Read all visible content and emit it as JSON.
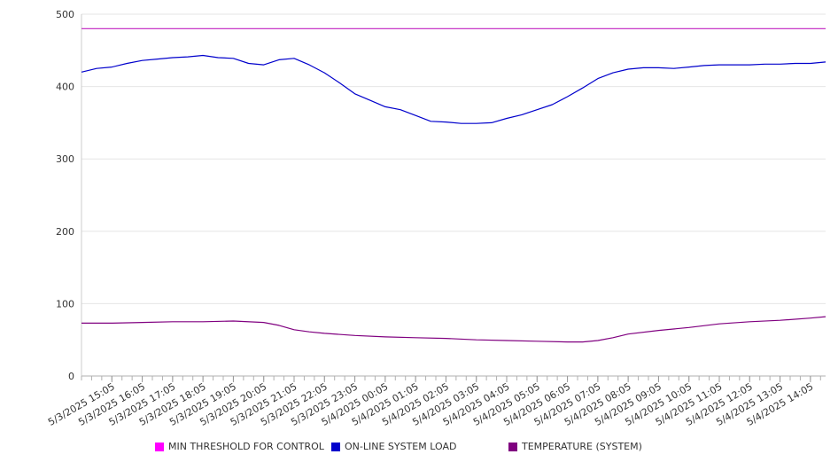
{
  "chart_data": {
    "type": "line",
    "ylim": [
      0,
      500
    ],
    "yticks": [
      "0",
      "100",
      "200",
      "300",
      "400",
      "500"
    ],
    "xticks": [
      "5/3/2025 15:05",
      "5/3/2025 16:05",
      "5/3/2025 17:05",
      "5/3/2025 18:05",
      "5/3/2025 19:05",
      "5/3/2025 20:05",
      "5/3/2025 21:05",
      "5/3/2025 22:05",
      "5/3/2025 23:05",
      "5/4/2025 00:05",
      "5/4/2025 01:05",
      "5/4/2025 02:05",
      "5/4/2025 03:05",
      "5/4/2025 04:05",
      "5/4/2025 05:05",
      "5/4/2025 06:05",
      "5/4/2025 07:05",
      "5/4/2025 08:05",
      "5/4/2025 09:05",
      "5/4/2025 10:05",
      "5/4/2025 11:05",
      "5/4/2025 12:05",
      "5/4/2025 13:05",
      "5/4/2025 14:05"
    ],
    "grid": true,
    "legend_position": "bottom",
    "series": [
      {
        "name": "MIN THRESHOLD FOR CONTROL",
        "color": "#c020c0",
        "x": [
          "5/3/2025 14:05",
          "5/4/2025 14:35"
        ],
        "values": [
          480,
          480
        ]
      },
      {
        "name": "ON-LINE SYSTEM LOAD",
        "color": "#0000cc",
        "x": [
          "5/3/2025 14:05",
          "5/3/2025 14:35",
          "5/3/2025 15:05",
          "5/3/2025 15:35",
          "5/3/2025 16:05",
          "5/3/2025 16:35",
          "5/3/2025 17:05",
          "5/3/2025 17:35",
          "5/3/2025 18:05",
          "5/3/2025 18:35",
          "5/3/2025 19:05",
          "5/3/2025 19:35",
          "5/3/2025 20:05",
          "5/3/2025 20:35",
          "5/3/2025 21:05",
          "5/3/2025 21:35",
          "5/3/2025 22:05",
          "5/3/2025 22:35",
          "5/3/2025 23:05",
          "5/3/2025 23:35",
          "5/4/2025 00:05",
          "5/4/2025 00:35",
          "5/4/2025 01:05",
          "5/4/2025 01:35",
          "5/4/2025 02:05",
          "5/4/2025 02:35",
          "5/4/2025 03:05",
          "5/4/2025 03:35",
          "5/4/2025 04:05",
          "5/4/2025 04:35",
          "5/4/2025 05:05",
          "5/4/2025 05:35",
          "5/4/2025 06:05",
          "5/4/2025 06:35",
          "5/4/2025 07:05",
          "5/4/2025 07:35",
          "5/4/2025 08:05",
          "5/4/2025 08:35",
          "5/4/2025 09:05",
          "5/4/2025 09:35",
          "5/4/2025 10:05",
          "5/4/2025 10:35",
          "5/4/2025 11:05",
          "5/4/2025 11:35",
          "5/4/2025 12:05",
          "5/4/2025 12:35",
          "5/4/2025 13:05",
          "5/4/2025 13:35",
          "5/4/2025 14:05",
          "5/4/2025 14:35"
        ],
        "values": [
          420,
          425,
          427,
          432,
          436,
          438,
          440,
          441,
          443,
          440,
          439,
          432,
          430,
          437,
          439,
          430,
          419,
          405,
          390,
          381,
          372,
          368,
          360,
          352,
          351,
          349,
          349,
          350,
          356,
          361,
          368,
          375,
          386,
          398,
          411,
          419,
          424,
          426,
          426,
          425,
          427,
          429,
          430,
          430,
          430,
          431,
          431,
          432,
          432,
          434
        ]
      },
      {
        "name": "TEMPERATURE (SYSTEM)",
        "color": "#800080",
        "x": [
          "5/3/2025 14:05",
          "5/3/2025 15:05",
          "5/3/2025 16:05",
          "5/3/2025 17:05",
          "5/3/2025 18:05",
          "5/3/2025 19:05",
          "5/3/2025 20:05",
          "5/3/2025 20:35",
          "5/3/2025 21:05",
          "5/3/2025 21:35",
          "5/3/2025 22:05",
          "5/3/2025 23:05",
          "5/4/2025 00:05",
          "5/4/2025 01:05",
          "5/4/2025 02:05",
          "5/4/2025 03:05",
          "5/4/2025 04:05",
          "5/4/2025 05:05",
          "5/4/2025 06:05",
          "5/4/2025 06:35",
          "5/4/2025 07:05",
          "5/4/2025 07:35",
          "5/4/2025 08:05",
          "5/4/2025 09:05",
          "5/4/2025 10:05",
          "5/4/2025 11:05",
          "5/4/2025 12:05",
          "5/4/2025 13:05",
          "5/4/2025 14:05",
          "5/4/2025 14:35"
        ],
        "values": [
          73,
          73,
          74,
          75,
          75,
          76,
          74,
          70,
          64,
          61,
          59,
          56,
          54,
          53,
          52,
          50,
          49,
          48,
          47,
          47,
          49,
          53,
          58,
          63,
          67,
          72,
          75,
          77,
          80,
          82
        ]
      }
    ]
  }
}
